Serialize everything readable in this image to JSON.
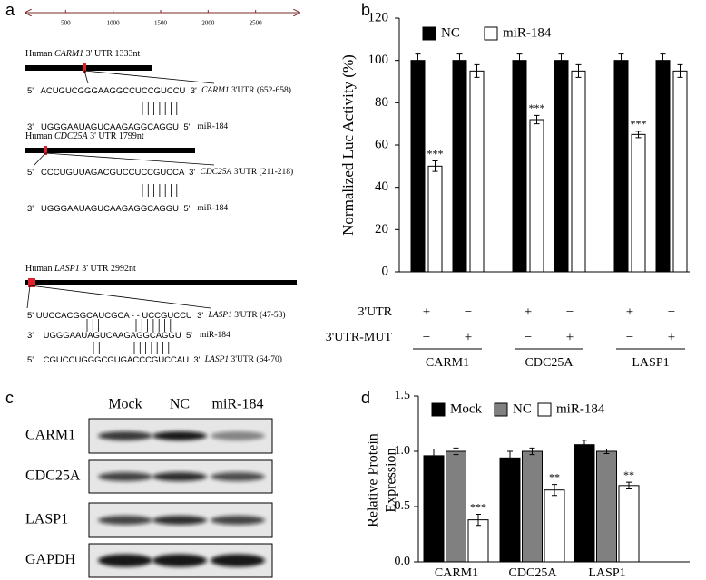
{
  "sequence_diagram": {
    "letter": "a",
    "scale": {
      "xlim": [
        0,
        3000
      ],
      "xticks": [
        500,
        1000,
        1500,
        2000,
        2500
      ]
    },
    "genes": [
      {
        "title": {
          "prefix": "Human ",
          "gene": "CARM1",
          "suffix": " 3' UTR 1333nt"
        },
        "lines": [
          {
            "text": "5'   ACUGUCGGGAAGGCCUCCGUCCU  3'  ",
            "gene": "CARM1",
            "note": " 3'UTR (652-658)"
          },
          {
            "text": "3'   UGGGAAUAGUCAAGAGGCAGGU  5'   ",
            "note": "miR-184"
          }
        ]
      },
      {
        "title": {
          "prefix": "Human ",
          "gene": "CDC25A",
          "suffix": " 3' UTR 1799nt"
        },
        "lines": [
          {
            "text": "5'   CCCUGUUAGACGUCCUCCGUCCA  3'  ",
            "gene": "CDC25A",
            "note": " 3'UTR (211-218)"
          },
          {
            "text": "3'   UGGGAAUAGUCAAGAGGCAGGU  5'   ",
            "note": "miR-184"
          }
        ]
      },
      {
        "title": {
          "prefix": "Human ",
          "gene": "LASP1",
          "suffix": " 3' UTR 2992nt"
        },
        "lines": [
          {
            "text": "5' UUCCACGGCAUCGCA - - UCCGUCCU  3'  ",
            "gene": "LASP1",
            "note": " 3'UTR (47-53)"
          },
          {
            "text": "3'    UGGGAAUAGUCAAGAGGCAGGU  5'   ",
            "note": "miR-184"
          },
          {
            "text": "5'    CGUCCUGGGCGUGACCCGUCCAU  3'  ",
            "gene": "LASP1",
            "note": " 3'UTR (64-70)"
          }
        ]
      }
    ]
  },
  "western_blot": {
    "letter": "c",
    "columns": [
      "Mock",
      "NC",
      "miR-184"
    ],
    "rows": [
      "CARM1",
      "CDC25A",
      "LASP1",
      "GAPDH"
    ]
  },
  "chart_data": [
    {
      "type": "bar",
      "letter": "b",
      "ylabel": "Normalized Luc Activity (%)",
      "categories": [
        null,
        null,
        null,
        null,
        null,
        null
      ],
      "series": [
        {
          "name": "NC",
          "color": "#000000",
          "values": [
            100,
            100,
            100,
            100,
            100,
            100
          ],
          "errors": [
            3,
            3,
            3,
            3,
            3,
            3
          ]
        },
        {
          "name": "miR-184",
          "color": "#ffffff",
          "values": [
            50,
            95,
            72,
            95,
            65,
            95
          ],
          "errors": [
            2.5,
            3,
            2,
            3,
            1.5,
            3
          ],
          "significance": [
            "***",
            null,
            "***",
            null,
            "***",
            null
          ]
        }
      ],
      "ylim": [
        0,
        120
      ],
      "yticks": [
        0,
        20,
        40,
        60,
        80,
        100,
        120
      ],
      "conditions": {
        "rows": [
          {
            "label": "3'UTR",
            "marks": [
              "+",
              "−",
              "+",
              "−",
              "+",
              "−"
            ]
          },
          {
            "label": "3'UTR-MUT",
            "marks": [
              "−",
              "+",
              "−",
              "+",
              "−",
              "+"
            ]
          }
        ],
        "groups": [
          "CARM1",
          "CDC25A",
          "LASP1"
        ]
      }
    },
    {
      "type": "bar",
      "letter": "d",
      "ylabel": [
        "Relative Protein",
        "Expression"
      ],
      "categories": [
        "CARM1",
        "CDC25A",
        "LASP1"
      ],
      "series": [
        {
          "name": "Mock",
          "color": "#000000",
          "values": [
            0.96,
            0.94,
            1.06
          ],
          "errors": [
            0.06,
            0.06,
            0.04
          ]
        },
        {
          "name": "NC",
          "color": "#808080",
          "values": [
            1.0,
            1.0,
            1.0
          ],
          "errors": [
            0.03,
            0.03,
            0.02
          ]
        },
        {
          "name": "miR-184",
          "color": "#ffffff",
          "values": [
            0.38,
            0.65,
            0.69
          ],
          "errors": [
            0.05,
            0.05,
            0.03
          ],
          "significance": [
            "***",
            "**",
            "**"
          ]
        }
      ],
      "ylim": [
        0,
        1.5
      ],
      "yticks": [
        {
          "value": 0,
          "label": "0.0"
        },
        0.5,
        {
          "value": 1,
          "label": "1.0"
        },
        1.5
      ]
    }
  ]
}
